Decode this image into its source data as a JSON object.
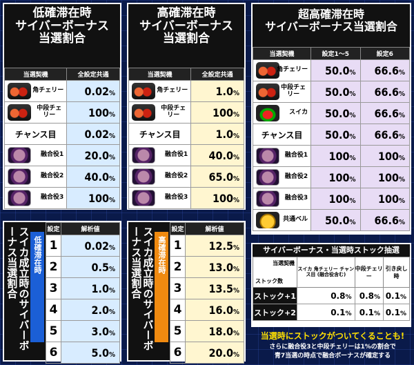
{
  "low": {
    "title1": "低確滞在時",
    "title2": "サイバーボーナス",
    "title3": "当選割合",
    "h1": "当選契機",
    "h2": "全設定共通",
    "rows": [
      {
        "label": "角チェリー",
        "value": "0.02",
        "icon": "cherry-icon"
      },
      {
        "label": "中段チェリー",
        "value": "100",
        "icon": "cherry-icon"
      },
      {
        "label": "チャンス目",
        "value": "0.02",
        "icon": ""
      },
      {
        "label": "融合役1",
        "value": "20.0",
        "icon": "fusion-icon"
      },
      {
        "label": "融合役2",
        "value": "40.0",
        "icon": "fusion-icon"
      },
      {
        "label": "融合役3",
        "value": "100",
        "icon": "fusion-icon"
      }
    ]
  },
  "high": {
    "title1": "高確滞在時",
    "title2": "サイバーボーナス",
    "title3": "当選割合",
    "h1": "当選契機",
    "h2": "全設定共通",
    "rows": [
      {
        "label": "角チェリー",
        "value": "1.0"
      },
      {
        "label": "中段チェリー",
        "value": "100"
      },
      {
        "label": "チャンス目",
        "value": "1.0"
      },
      {
        "label": "融合役1",
        "value": "40.0"
      },
      {
        "label": "融合役2",
        "value": "65.0"
      },
      {
        "label": "融合役3",
        "value": "100"
      }
    ]
  },
  "super": {
    "title1": "超高確滞在時",
    "title2": "サイバーボーナス当選割合",
    "h1": "当選契機",
    "h2": "設定1〜5",
    "h3": "設定6",
    "rows": [
      {
        "label": "角チェリー",
        "v1": "50.0",
        "v2": "66.6"
      },
      {
        "label": "中段チェリー",
        "v1": "50.0",
        "v2": "66.6"
      },
      {
        "label": "スイカ",
        "v1": "50.0",
        "v2": "66.6"
      },
      {
        "label": "チャンス目",
        "v1": "50.0",
        "v2": "66.6"
      },
      {
        "label": "融合役1",
        "v1": "100",
        "v2": "100"
      },
      {
        "label": "融合役2",
        "v1": "100",
        "v2": "100"
      },
      {
        "label": "融合役3",
        "v1": "100",
        "v2": "100"
      },
      {
        "label": "共通ベル",
        "v1": "50.0",
        "v2": "66.6"
      }
    ]
  },
  "suika_low": {
    "vtitle": "スイカ成立時のサイバーボーナス当選割合",
    "state": "低確滞在時",
    "h1": "設定",
    "h2": "解析値",
    "rows": [
      [
        "1",
        "0.02"
      ],
      [
        "2",
        "0.5"
      ],
      [
        "3",
        "1.0"
      ],
      [
        "4",
        "2.0"
      ],
      [
        "5",
        "3.0"
      ],
      [
        "6",
        "5.0"
      ]
    ]
  },
  "suika_high": {
    "vtitle": "スイカ成立時のサイバーボーナス当選割合",
    "state": "高確滞在時",
    "h1": "設定",
    "h2": "解析値",
    "rows": [
      [
        "1",
        "12.5"
      ],
      [
        "2",
        "13.0"
      ],
      [
        "3",
        "13.5"
      ],
      [
        "4",
        "16.0"
      ],
      [
        "5",
        "18.0"
      ],
      [
        "6",
        "20.0"
      ]
    ]
  },
  "stock": {
    "title": "サイバーボーナス・当選時ストック抽選",
    "corner_top": "当選契機",
    "corner_bottom": "ストック数",
    "cols": [
      "スイカ 角チェリー チャンス目 (融合役含む)",
      "中段チェリー",
      "引き戻し時"
    ],
    "rows": [
      {
        "label": "ストック+1",
        "vals": [
          "0.8",
          "0.8",
          "0.1"
        ]
      },
      {
        "label": "ストック+2",
        "vals": [
          "0.1",
          "0.1",
          "0.1"
        ]
      }
    ]
  },
  "notes": {
    "line1": "当選時にストックがついてくることも!",
    "line2": "さらに融合役3と中段チェリーは1%の割合で",
    "line3": "青7当選の時点で融合ボーナスが確定する"
  },
  "percent": "%"
}
